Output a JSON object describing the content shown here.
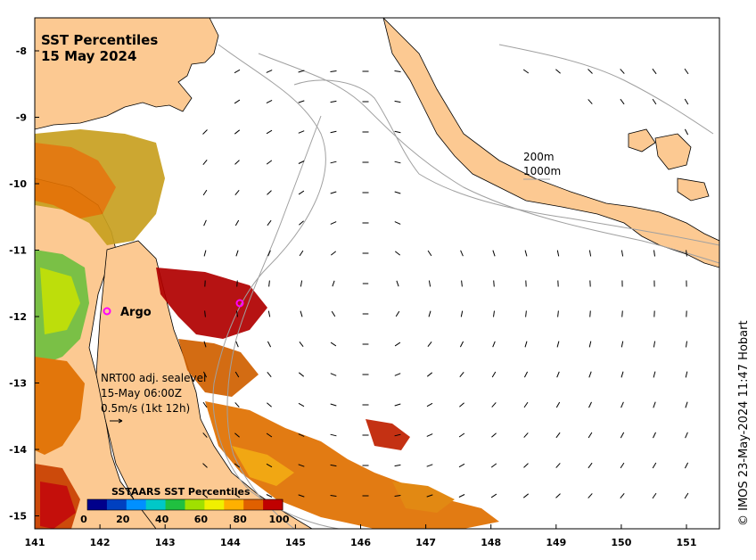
{
  "title_line1": "SST Percentiles",
  "title_line2": "15 May 2024",
  "x_ticks": [
    "141",
    "142",
    "143",
    "144",
    "145",
    "146",
    "147",
    "148",
    "149",
    "150",
    "151"
  ],
  "y_ticks": [
    "-8",
    "-9",
    "-10",
    "-11",
    "-12",
    "-13",
    "-14",
    "-15"
  ],
  "contour_legend": {
    "line1": "200m",
    "line2": "1000m"
  },
  "argo_label": "Argo",
  "vector_info": {
    "line1": "NRT00 adj. sealevel",
    "line2": "15-May 06:00Z",
    "line3": "0.5m/s (1kt 12h)"
  },
  "colorbar": {
    "title": "SSTAARS SST Percentiles",
    "labels": [
      "0",
      "20",
      "40",
      "60",
      "80",
      "100"
    ],
    "colors": [
      "#00008b",
      "#0040c0",
      "#0090ff",
      "#00c8c8",
      "#20c040",
      "#a0e000",
      "#f0f000",
      "#ffb000",
      "#e06000",
      "#c00000"
    ]
  },
  "credit": "© IMOS 23-May-2024 11:47 Hobart",
  "colors": {
    "land": "#fcc992",
    "ocean": "#ffffff",
    "contour": "#a0a0a0"
  }
}
